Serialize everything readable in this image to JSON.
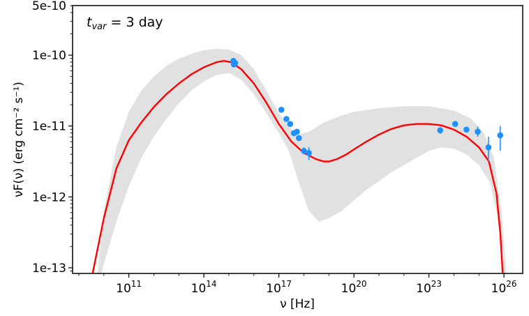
{
  "chart_data": {
    "type": "scatter",
    "annotation": {
      "symbol": "t",
      "subscript": "var",
      "text": " = 3 day"
    },
    "xlabel": "ν [Hz]",
    "ylabel": "νF(ν) (erg cm⁻² s⁻¹)",
    "x_log_range": [
      8.75,
      26.75
    ],
    "y_log_range": [
      -13.08,
      -9.3
    ],
    "x_ticks": [
      {
        "exp": 11,
        "base": "10",
        "sup": "11"
      },
      {
        "exp": 14,
        "base": "10",
        "sup": "14"
      },
      {
        "exp": 17,
        "base": "10",
        "sup": "17"
      },
      {
        "exp": 20,
        "base": "10",
        "sup": "20"
      },
      {
        "exp": 23,
        "base": "10",
        "sup": "23"
      },
      {
        "exp": 26,
        "base": "10",
        "sup": "26"
      }
    ],
    "y_ticks": [
      {
        "value": 5e-10,
        "label": "5e-10"
      },
      {
        "value": 1e-10,
        "label": "1e-10"
      },
      {
        "value": 1e-11,
        "label": "1e-11"
      },
      {
        "value": 1e-12,
        "label": "1e-12"
      },
      {
        "value": 1e-13,
        "label": "1e-13"
      }
    ],
    "model_curve": {
      "color": "#ff0000",
      "points_log": [
        [
          9.55,
          -13.1
        ],
        [
          10.0,
          -12.3
        ],
        [
          10.5,
          -11.6
        ],
        [
          11.0,
          -11.2
        ],
        [
          11.5,
          -10.95
        ],
        [
          12.0,
          -10.73
        ],
        [
          12.5,
          -10.55
        ],
        [
          13.0,
          -10.4
        ],
        [
          13.5,
          -10.27
        ],
        [
          14.0,
          -10.17
        ],
        [
          14.5,
          -10.1
        ],
        [
          14.8,
          -10.08
        ],
        [
          15.1,
          -10.1
        ],
        [
          15.5,
          -10.2
        ],
        [
          16.0,
          -10.4
        ],
        [
          16.5,
          -10.67
        ],
        [
          17.0,
          -10.97
        ],
        [
          17.5,
          -11.22
        ],
        [
          18.0,
          -11.38
        ],
        [
          18.5,
          -11.47
        ],
        [
          18.8,
          -11.5
        ],
        [
          19.0,
          -11.5
        ],
        [
          19.3,
          -11.47
        ],
        [
          19.7,
          -11.4
        ],
        [
          20.0,
          -11.33
        ],
        [
          20.5,
          -11.22
        ],
        [
          21.0,
          -11.12
        ],
        [
          21.5,
          -11.04
        ],
        [
          22.0,
          -10.99
        ],
        [
          22.5,
          -10.97
        ],
        [
          23.0,
          -10.97
        ],
        [
          23.5,
          -10.99
        ],
        [
          24.0,
          -11.05
        ],
        [
          24.5,
          -11.15
        ],
        [
          25.0,
          -11.3
        ],
        [
          25.4,
          -11.5
        ],
        [
          25.7,
          -11.95
        ],
        [
          25.85,
          -12.5
        ],
        [
          25.95,
          -13.1
        ]
      ]
    },
    "model_band": {
      "color": "#dcdcdc",
      "upper_log": [
        [
          9.75,
          -13.1
        ],
        [
          10.0,
          -12.2
        ],
        [
          10.5,
          -11.3
        ],
        [
          11.0,
          -10.8
        ],
        [
          11.5,
          -10.5
        ],
        [
          12.0,
          -10.3
        ],
        [
          12.5,
          -10.15
        ],
        [
          13.0,
          -10.05
        ],
        [
          13.5,
          -9.98
        ],
        [
          14.0,
          -9.93
        ],
        [
          14.5,
          -9.91
        ],
        [
          15.0,
          -9.92
        ],
        [
          15.5,
          -10.0
        ],
        [
          16.0,
          -10.2
        ],
        [
          16.5,
          -10.5
        ],
        [
          17.0,
          -10.82
        ],
        [
          17.5,
          -11.05
        ],
        [
          17.8,
          -11.12
        ],
        [
          18.2,
          -11.08
        ],
        [
          18.8,
          -10.95
        ],
        [
          19.5,
          -10.85
        ],
        [
          20.0,
          -10.8
        ],
        [
          21.0,
          -10.75
        ],
        [
          22.0,
          -10.72
        ],
        [
          23.0,
          -10.72
        ],
        [
          24.0,
          -10.78
        ],
        [
          24.7,
          -10.9
        ],
        [
          25.2,
          -11.1
        ],
        [
          25.6,
          -11.45
        ],
        [
          25.9,
          -12.2
        ],
        [
          26.1,
          -13.1
        ]
      ],
      "lower_log": [
        [
          26.0,
          -13.1
        ],
        [
          25.75,
          -12.3
        ],
        [
          25.45,
          -11.8
        ],
        [
          25.0,
          -11.55
        ],
        [
          24.5,
          -11.4
        ],
        [
          24.0,
          -11.32
        ],
        [
          23.5,
          -11.3
        ],
        [
          23.0,
          -11.35
        ],
        [
          22.5,
          -11.45
        ],
        [
          22.0,
          -11.55
        ],
        [
          21.5,
          -11.65
        ],
        [
          21.0,
          -11.78
        ],
        [
          20.5,
          -11.9
        ],
        [
          20.0,
          -12.05
        ],
        [
          19.5,
          -12.2
        ],
        [
          19.0,
          -12.3
        ],
        [
          18.6,
          -12.35
        ],
        [
          18.2,
          -12.2
        ],
        [
          17.8,
          -11.8
        ],
        [
          17.4,
          -11.35
        ],
        [
          17.0,
          -11.1
        ],
        [
          16.5,
          -10.82
        ],
        [
          16.0,
          -10.55
        ],
        [
          15.5,
          -10.35
        ],
        [
          15.0,
          -10.25
        ],
        [
          14.5,
          -10.28
        ],
        [
          14.0,
          -10.37
        ],
        [
          13.5,
          -10.5
        ],
        [
          13.0,
          -10.68
        ],
        [
          12.5,
          -10.9
        ],
        [
          12.0,
          -11.15
        ],
        [
          11.5,
          -11.45
        ],
        [
          11.0,
          -11.85
        ],
        [
          10.5,
          -12.35
        ],
        [
          10.0,
          -12.95
        ],
        [
          9.9,
          -13.1
        ]
      ]
    },
    "observations": {
      "color": "#1e90ff",
      "points": [
        {
          "log_nu": 15.18,
          "log_flux": -10.08,
          "err_lo": 0.03,
          "err_hi": 0.03
        },
        {
          "log_nu": 15.2,
          "log_flux": -10.13,
          "err_lo": 0.03,
          "err_hi": 0.03
        },
        {
          "log_nu": 15.25,
          "log_flux": -10.11,
          "err_lo": 0.03,
          "err_hi": 0.03
        },
        {
          "log_nu": 17.1,
          "log_flux": -10.77,
          "err_lo": 0.03,
          "err_hi": 0.03
        },
        {
          "log_nu": 17.3,
          "log_flux": -10.9,
          "err_lo": 0.03,
          "err_hi": 0.03
        },
        {
          "log_nu": 17.45,
          "log_flux": -10.97,
          "err_lo": 0.03,
          "err_hi": 0.03
        },
        {
          "log_nu": 17.6,
          "log_flux": -11.1,
          "err_lo": 0.03,
          "err_hi": 0.03
        },
        {
          "log_nu": 17.72,
          "log_flux": -11.08,
          "err_lo": 0.03,
          "err_hi": 0.03
        },
        {
          "log_nu": 17.8,
          "log_flux": -11.17,
          "err_lo": 0.04,
          "err_hi": 0.04
        },
        {
          "log_nu": 18.0,
          "log_flux": -11.35,
          "err_lo": 0.05,
          "err_hi": 0.05
        },
        {
          "log_nu": 18.2,
          "log_flux": -11.38,
          "err_lo": 0.1,
          "err_hi": 0.08
        },
        {
          "log_nu": 23.45,
          "log_flux": -11.06,
          "err_lo": 0.05,
          "err_hi": 0.05
        },
        {
          "log_nu": 24.05,
          "log_flux": -10.97,
          "err_lo": 0.03,
          "err_hi": 0.03
        },
        {
          "log_nu": 24.5,
          "log_flux": -11.05,
          "err_lo": 0.03,
          "err_hi": 0.03
        },
        {
          "log_nu": 24.95,
          "log_flux": -11.08,
          "err_lo": 0.07,
          "err_hi": 0.07
        },
        {
          "log_nu": 25.38,
          "log_flux": -11.3,
          "err_lo": 0.2,
          "err_hi": 0.15
        },
        {
          "log_nu": 25.85,
          "log_flux": -11.13,
          "err_lo": 0.22,
          "err_hi": 0.13
        }
      ]
    }
  }
}
